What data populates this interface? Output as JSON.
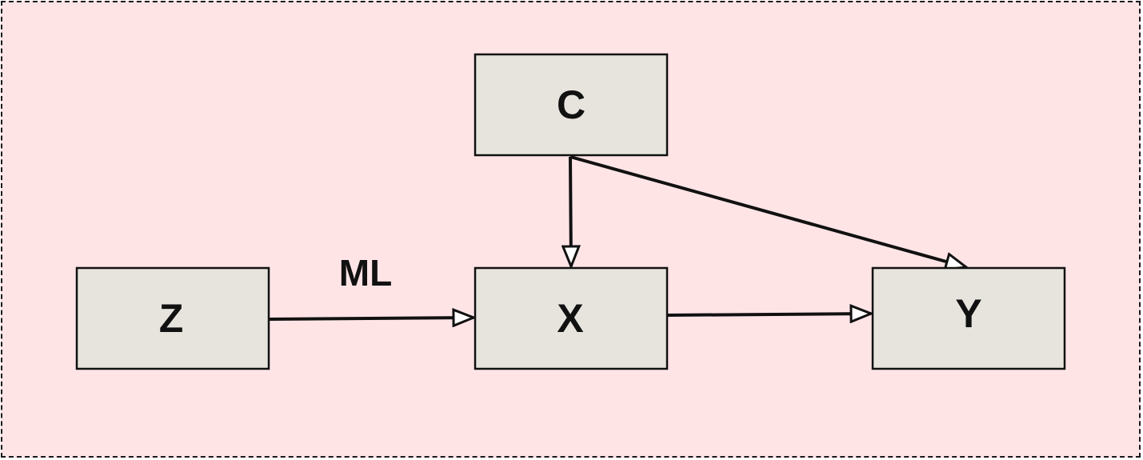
{
  "colors": {
    "background": "#ffe4e6",
    "node_fill": "#e6e4dd",
    "stroke": "#111111"
  },
  "nodes": {
    "z": {
      "label": "Z"
    },
    "x": {
      "label": "X"
    },
    "y": {
      "label": "Y"
    },
    "c": {
      "label": "C"
    }
  },
  "edges": [
    {
      "from": "Z",
      "to": "X",
      "label": "ML"
    },
    {
      "from": "C",
      "to": "X",
      "label": ""
    },
    {
      "from": "C",
      "to": "Y",
      "label": ""
    },
    {
      "from": "X",
      "to": "Y",
      "label": ""
    }
  ],
  "edge_labels": {
    "z_x": "ML"
  }
}
